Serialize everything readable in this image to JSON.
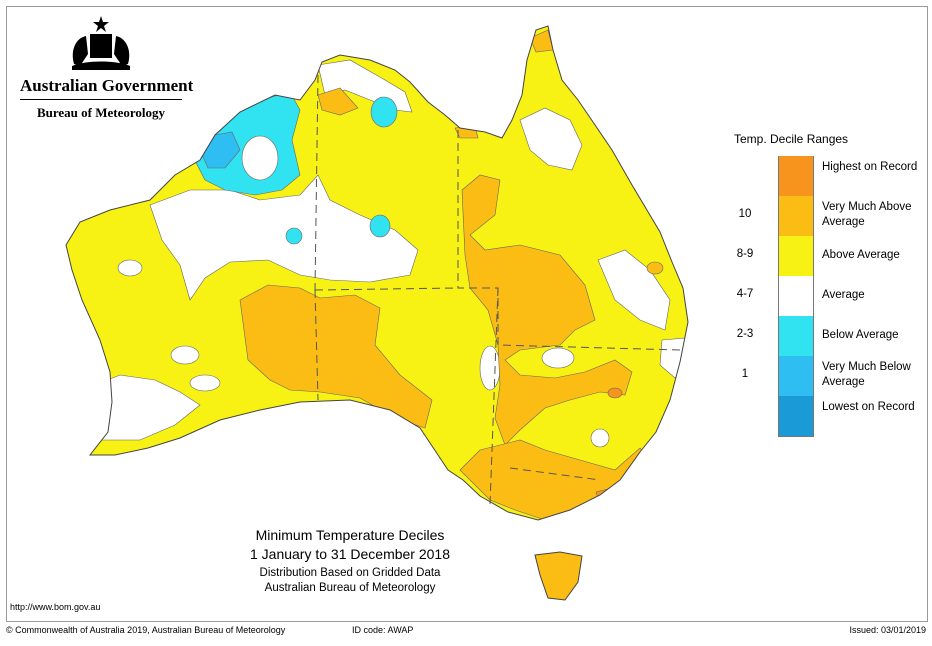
{
  "header": {
    "government": "Australian Government",
    "agency": "Bureau of Meteorology",
    "emblem_icon": "coat-of-arms-icon"
  },
  "legend": {
    "title": "Temp. Decile Ranges",
    "items": [
      {
        "range": "",
        "label": "Highest on Record",
        "color": "#f7941d"
      },
      {
        "range": "10",
        "label": "Very Much Above Average",
        "color": "#fbbd13"
      },
      {
        "range": "8-9",
        "label": "Above Average",
        "color": "#f7f114"
      },
      {
        "range": "4-7",
        "label": "Average",
        "color": "#ffffff"
      },
      {
        "range": "2-3",
        "label": "Below Average",
        "color": "#31e3f0"
      },
      {
        "range": "1",
        "label": "Very Much Below Average",
        "color": "#2ebef2"
      },
      {
        "range": "",
        "label": "Lowest on Record",
        "color": "#1a9bd7"
      }
    ]
  },
  "captions": {
    "title": "Minimum Temperature Deciles",
    "period": "1 January to 31 December 2018",
    "line3": "Distribution Based on Gridded Data",
    "line4": "Australian Bureau of Meteorology"
  },
  "url": "http://www.bom.gov.au",
  "footer": {
    "copyright": "© Commonwealth of Australia 2019, Australian Bureau of Meteorology",
    "id_code": "ID code: AWAP",
    "issued": "Issued: 03/01/2019"
  }
}
